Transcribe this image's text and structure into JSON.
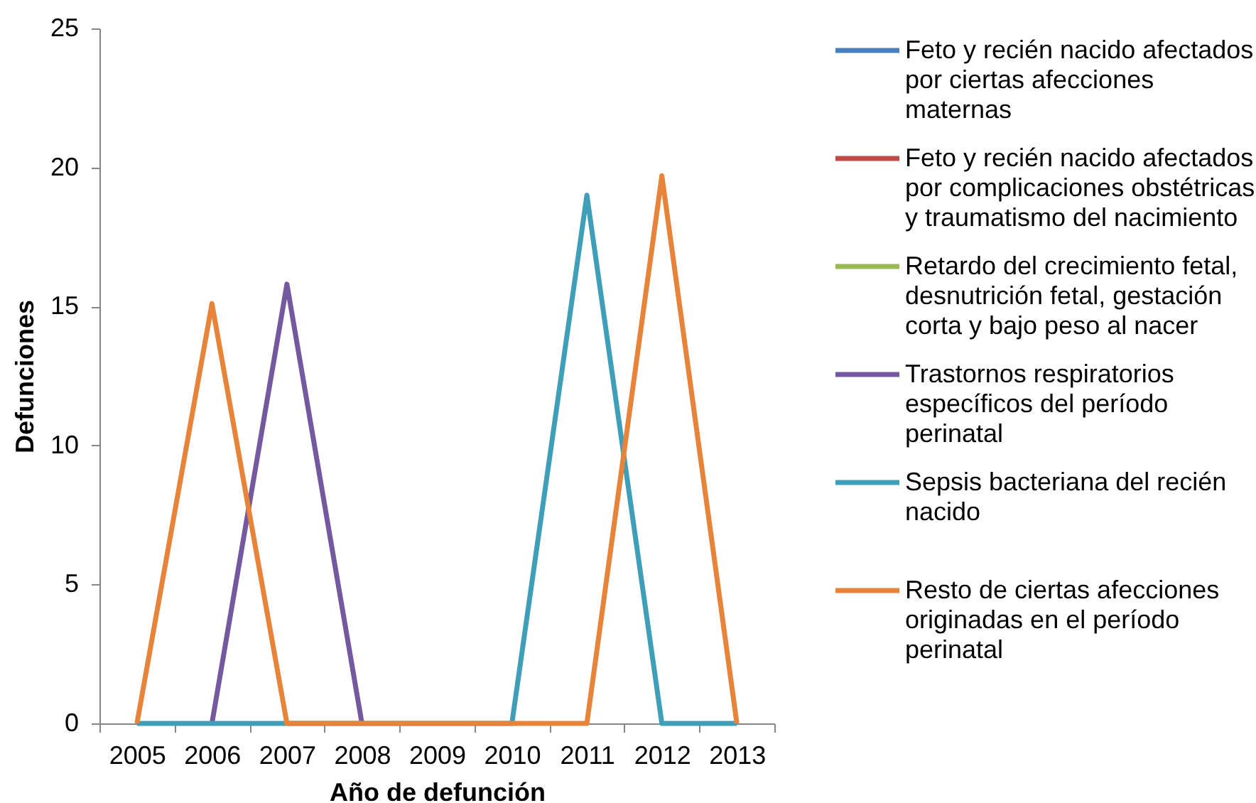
{
  "chart_data": {
    "type": "line",
    "xlabel": "Año de defunción",
    "ylabel": "Defunciones",
    "categories": [
      "2005",
      "2006",
      "2007",
      "2008",
      "2009",
      "2010",
      "2011",
      "2012",
      "2013"
    ],
    "ylim": [
      0,
      25
    ],
    "yticks": [
      0,
      5,
      10,
      15,
      20,
      25
    ],
    "legend": "right",
    "series": [
      {
        "name": "Feto y recién nacido afectados por ciertas afecciones maternas",
        "color": "#4a7ebb",
        "values": [
          null,
          null,
          null,
          null,
          null,
          null,
          null,
          null,
          null
        ]
      },
      {
        "name": "Feto y recién nacido afectados por complicaciones obstétricas y traumatismo del nacimiento",
        "color": "#be4b48",
        "values": [
          null,
          null,
          null,
          null,
          null,
          null,
          null,
          null,
          null
        ]
      },
      {
        "name": "Retardo del crecimiento fetal, desnutrición fetal, gestación corta y bajo peso al nacer",
        "color": "#98b954",
        "values": [
          null,
          null,
          null,
          null,
          null,
          null,
          null,
          null,
          null
        ]
      },
      {
        "name": "Trastornos respiratorios específicos del período perinatal",
        "color": "#7458a0",
        "values": [
          null,
          0,
          15.8,
          0,
          null,
          null,
          null,
          null,
          null
        ]
      },
      {
        "name": "Sepsis bacteriana del recién nacido",
        "color": "#3f9fb8",
        "values": [
          0,
          0,
          0,
          0,
          0,
          0,
          19,
          0,
          0
        ]
      },
      {
        "name": "Resto de ciertas afecciones originadas en el período perinatal",
        "color": "#e8843a",
        "values": [
          0,
          15.1,
          0,
          0,
          0,
          0,
          0,
          19.7,
          0
        ]
      }
    ]
  }
}
